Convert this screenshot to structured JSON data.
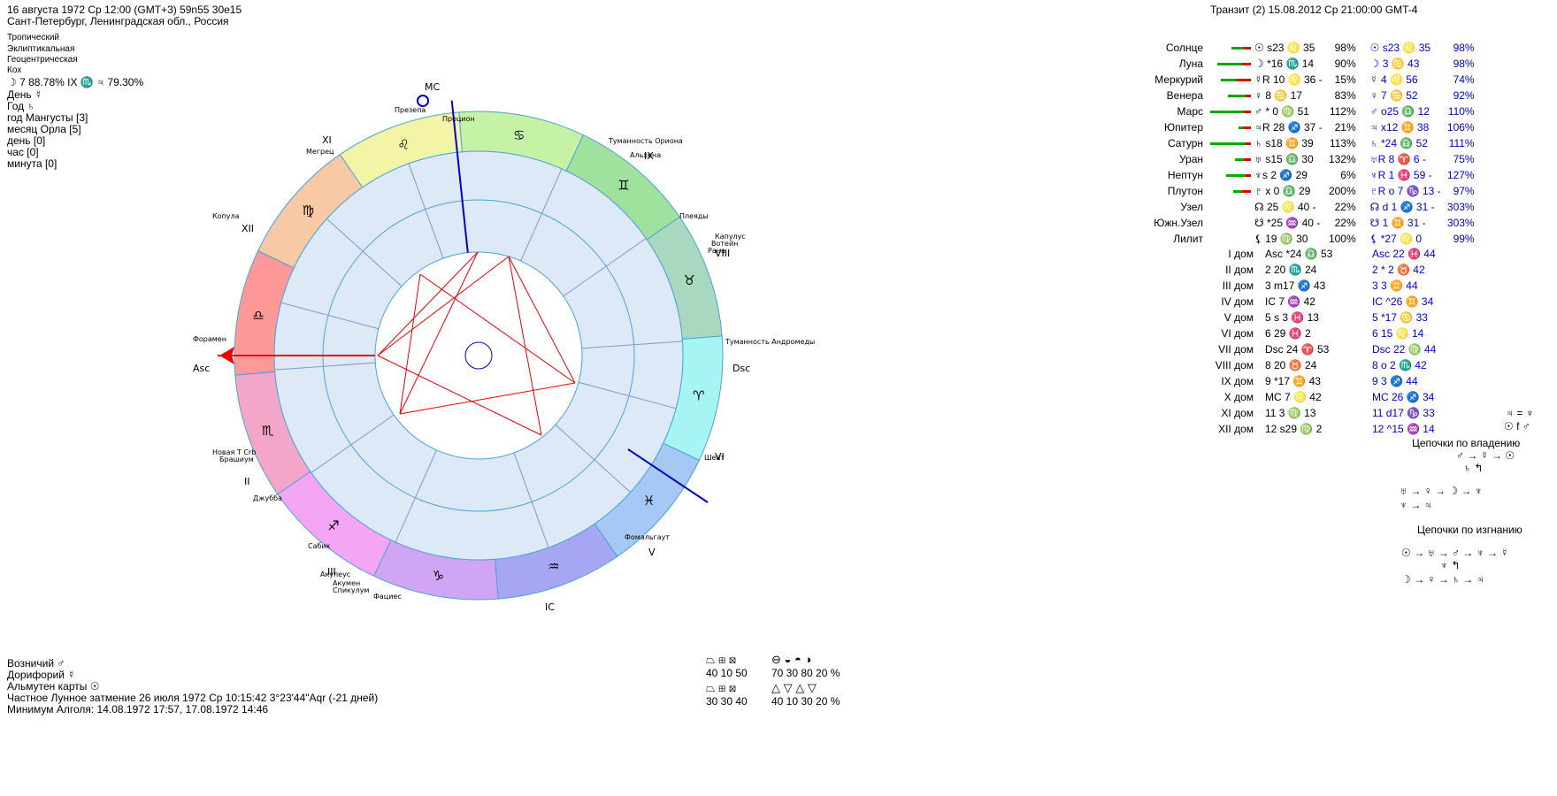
{
  "header_left": {
    "line1": "16 августа 1972  Ср  12:00  (GMT+3)  59n55  30e15",
    "line2": "Сант-Петербург, Ленинградская обл., Россия",
    "settings": [
      "Тропический",
      "Эклиптикальная",
      "Геоцентрическая",
      "Кох"
    ],
    "moon_line": "☽  7 88.78% IX ♏ ♃ 79.30%",
    "day_line": "День ☿",
    "year_line": "Год ♄",
    "mongoose": "год Мангусты [3]",
    "eagle": "месяц Орла [5]",
    "day_idx": "день  [0]",
    "hour_idx": "час  [0]",
    "minute_idx": "минута  [0]"
  },
  "header_right": "Транзит (2) 15.08.2012  Ср 21:00:00 GMT-4",
  "wheel": {
    "labels": {
      "mc": "MC",
      "asc": "Asc",
      "dsc": "Dsc",
      "ic": "IC"
    },
    "houses_roman": [
      "XI",
      "XII",
      "II",
      "III",
      "IX",
      "VIII",
      "VI",
      "V"
    ],
    "stars": [
      "Презепа",
      "Процион",
      "Туманность Ориона",
      "Альхена",
      "Мегрец",
      "Копула",
      "Плеяды",
      "Капулус",
      "Вотейн",
      "Рана",
      "Форамен",
      "Туманность Андромеды",
      "Новая Т Crb",
      "Брашиум",
      "Джубба",
      "Шеат",
      "Фомальгаут",
      "Сабик",
      "Акулеус",
      "Акумен",
      "Спикулум",
      "Фациес"
    ],
    "signs": [
      "♌",
      "♋",
      "♊",
      "♉",
      "♈",
      "♓",
      "♒",
      "♑",
      "♐",
      "♏",
      "♎",
      "♍"
    ]
  },
  "planets_table": {
    "rows": [
      {
        "name": "Солнце",
        "natal": "☉ s23 ♌ 35",
        "pct": "98%",
        "transit": "☉ s23 ♌ 35",
        "tpct": "98%"
      },
      {
        "name": "Луна",
        "natal": "☽ *16 ♏ 14",
        "pct": "90%",
        "transit": "☽ 3 ♋ 43",
        "tpct": "98%"
      },
      {
        "name": "Меркурий",
        "natal": "☿R 10 ♌ 36 -",
        "pct": "15%",
        "transit": "☿ 4 ♌ 56",
        "tpct": "74%"
      },
      {
        "name": "Венера",
        "natal": "♀ 8 ♋ 17",
        "pct": "83%",
        "transit": "♀ 7 ♋ 52",
        "tpct": "92%"
      },
      {
        "name": "Марс",
        "natal": "♂ * 0 ♍ 51",
        "pct": "112%",
        "transit": "♂ o25 ♎ 12",
        "tpct": "110%"
      },
      {
        "name": "Юпитер",
        "natal": "♃R 28 ♐ 37 -",
        "pct": "21%",
        "transit": "♃ x12 ♊ 38",
        "tpct": "106%"
      },
      {
        "name": "Сатурн",
        "natal": "♄ s18 ♊ 39",
        "pct": "113%",
        "transit": "♄ *24 ♎ 52",
        "tpct": "111%"
      },
      {
        "name": "Уран",
        "natal": "♅ s15 ♎ 30",
        "pct": "132%",
        "transit": "♅R 8 ♈ 6 -",
        "tpct": "75%"
      },
      {
        "name": "Нептун",
        "natal": "♆s 2 ♐ 29",
        "pct": "6%",
        "transit": "♆R 1 ♓ 59 -",
        "tpct": "127%"
      },
      {
        "name": "Плутон",
        "natal": "♇ x 0 ♎ 29",
        "pct": "200%",
        "transit": "♇R o 7 ♑ 13 -",
        "tpct": "97%"
      },
      {
        "name": "Узел",
        "natal": "☊ 25 ♌ 40 -",
        "pct": "22%",
        "transit": "☊ d 1 ♐ 31 -",
        "tpct": "303%"
      },
      {
        "name": "Южн.Узел",
        "natal": "☋ *25 ♒ 40 -",
        "pct": "22%",
        "transit": "☋ 1 ♊ 31 -",
        "tpct": "303%"
      },
      {
        "name": "Лилит",
        "natal": "⚸ 19 ♍ 30",
        "pct": "100%",
        "transit": "⚸ *27 ♌ 0",
        "tpct": "99%"
      }
    ]
  },
  "houses_table": {
    "rows": [
      {
        "name": "I дом",
        "natal": "Asc *24 ♎ 53",
        "transit": "Asc 22 ♓ 44"
      },
      {
        "name": "II дом",
        "natal": "2 20 ♏ 24",
        "transit": "2 * 2 ♉ 42"
      },
      {
        "name": "III дом",
        "natal": "3 m17 ♐ 43",
        "transit": "3 3 ♊ 44"
      },
      {
        "name": "IV дом",
        "natal": "IC 7 ♒ 42",
        "transit": "IC ^26 ♊ 34"
      },
      {
        "name": "V дом",
        "natal": "5 s 3 ♓ 13",
        "transit": "5 *17 ♋ 33"
      },
      {
        "name": "VI дом",
        "natal": "6 29 ♓ 2",
        "transit": "6 15 ♌ 14"
      },
      {
        "name": "VII дом",
        "natal": "Dsc 24 ♈ 53",
        "transit": "Dsc 22 ♍ 44"
      },
      {
        "name": "VIII дом",
        "natal": "8 20 ♉ 24",
        "transit": "8 o 2 ♏ 42"
      },
      {
        "name": "IX дом",
        "natal": "9 *17 ♊ 43",
        "transit": "9 3 ♐ 44"
      },
      {
        "name": "X дом",
        "natal": "MC 7 ♌ 42",
        "transit": "MC 26 ♐ 34"
      },
      {
        "name": "XI дом",
        "natal": "11 3 ♍ 13",
        "transit": "11 d17 ♑ 33"
      },
      {
        "name": "XII дом",
        "natal": "12 s29 ♍ 2",
        "transit": "12 ^15 ♒ 14"
      }
    ]
  },
  "chains": {
    "top": "♃ = ♆",
    "top2": "☉ f ♂",
    "ownership_title": "Цепочки по владению",
    "own1": "♂ → ☿ → ☉",
    "own2": "♄ ↰",
    "own3": "♅ → ♀ → ☽ → ♆",
    "own4": "♆ → ♃",
    "exile_title": "Цепочки по изгнанию",
    "ex1": "☉ → ♅ → ♂ → ♆ → ☿",
    "ex2": "♆ ↰",
    "ex3": "☽ → ♀ → ♄ → ♃"
  },
  "footer_left": {
    "charioteer": "Возничий ♂",
    "doryphoros": "Дорифорий ☿",
    "almuten": "Альмутен карты ☉",
    "eclipse": "Частное Лунное затмение 26 июля 1972 Ср 10:15:42  3°23'44\"Aqr (-21 дней)",
    "algol": "Минимум Алголя: 14.08.1972 17:57,  17.08.1972 14:46"
  },
  "footer_stats": {
    "row1": "40  10  50",
    "row2": "30  30  40",
    "row3": "70  30  80  20 %",
    "row4": "40  10  30  20 %"
  }
}
